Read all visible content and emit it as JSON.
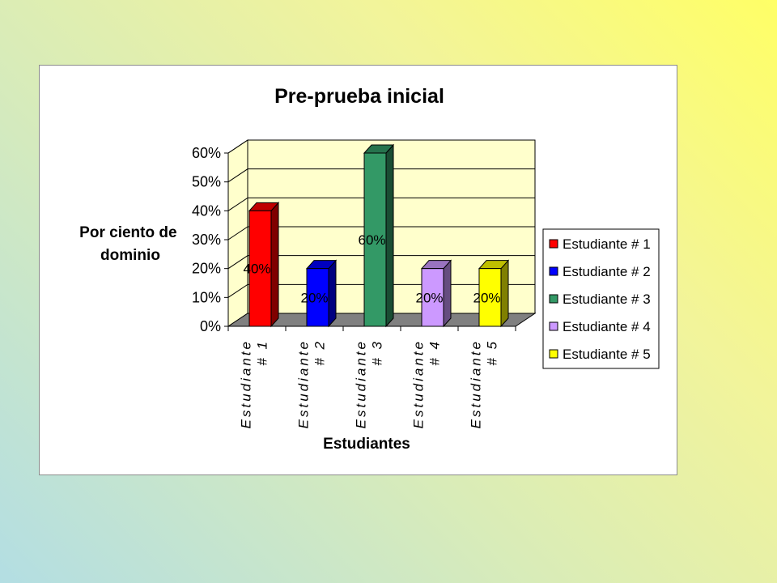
{
  "chart_data": {
    "type": "bar",
    "title": "Pre-prueba inicial",
    "xlabel": "Estudiantes",
    "ylabel_lines": [
      "Por ciento de",
      "dominio"
    ],
    "categories": [
      "Estudiante # 1",
      "Estudiante # 2",
      "Estudiante # 3",
      "Estudiante # 4",
      "Estudiante # 5"
    ],
    "category_lines": [
      [
        "Estudiante",
        "# 1"
      ],
      [
        "Estudiante",
        "# 2"
      ],
      [
        "Estudiante",
        "# 3"
      ],
      [
        "Estudiante",
        "# 4"
      ],
      [
        "Estudiante",
        "# 5"
      ]
    ],
    "values": [
      40,
      20,
      60,
      20,
      20
    ],
    "data_labels": [
      "40%",
      "20%",
      "60%",
      "20%",
      "20%"
    ],
    "colors": [
      "#ff0000",
      "#0000ff",
      "#339966",
      "#cc99ff",
      "#ffff00"
    ],
    "ylim": [
      0,
      60
    ],
    "yticks": [
      0,
      10,
      20,
      30,
      40,
      50,
      60
    ],
    "ytick_labels": [
      "0%",
      "10%",
      "20%",
      "30%",
      "40%",
      "50%",
      "60%"
    ],
    "grid": true,
    "plot_background": "#ffffcc",
    "floor_color": "#808080",
    "three_d": true,
    "legend": {
      "position": "right",
      "entries": [
        "Estudiante # 1",
        "Estudiante # 2",
        "Estudiante # 3",
        "Estudiante # 4",
        "Estudiante # 5"
      ]
    }
  }
}
